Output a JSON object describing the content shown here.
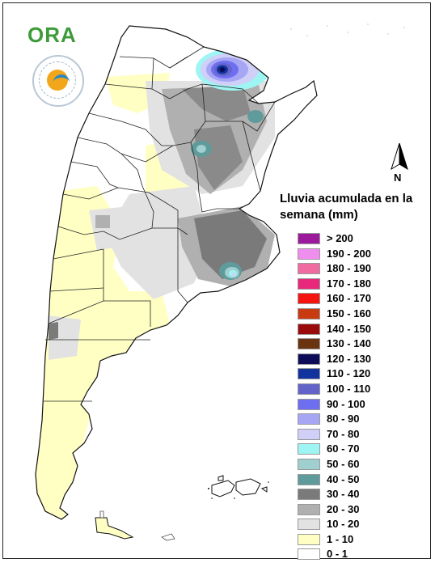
{
  "logo": {
    "text": "ORA",
    "seal_text": "SERVICIO METEOROLOGICO NACIONAL · ARGENTINA"
  },
  "north_arrow": {
    "label": "N"
  },
  "legend": {
    "title": "Lluvia acumulada en la semana (mm)",
    "items": [
      {
        "label": "> 200",
        "color": "#9b1a9b"
      },
      {
        "label": "190 - 200",
        "color": "#f08ef0"
      },
      {
        "label": "180 - 190",
        "color": "#f06ba0"
      },
      {
        "label": "170 - 180",
        "color": "#e8287a"
      },
      {
        "label": "160 - 170",
        "color": "#f5130f"
      },
      {
        "label": "150 - 160",
        "color": "#c83a10"
      },
      {
        "label": "140 - 150",
        "color": "#9a0a0a"
      },
      {
        "label": "130 - 140",
        "color": "#6b3410"
      },
      {
        "label": "120 - 130",
        "color": "#0c0c58"
      },
      {
        "label": "110 - 120",
        "color": "#11339e"
      },
      {
        "label": "100 - 110",
        "color": "#6464c8"
      },
      {
        "label": "90 - 100",
        "color": "#6e6ef0"
      },
      {
        "label": "80 - 90",
        "color": "#a6a6f4"
      },
      {
        "label": "70 - 80",
        "color": "#cfcff7"
      },
      {
        "label": "60 - 70",
        "color": "#9ef5f3"
      },
      {
        "label": "50 - 60",
        "color": "#9fcfcf"
      },
      {
        "label": "40 - 50",
        "color": "#5f9b9b"
      },
      {
        "label": "30 - 40",
        "color": "#7a7a7a"
      },
      {
        "label": "20 - 30",
        "color": "#b0b0b0"
      },
      {
        "label": "10 - 20",
        "color": "#e2e2e2"
      },
      {
        "label": "1 - 10",
        "color": "#ffffc4"
      },
      {
        "label": "0 - 1",
        "color": "#ffffff"
      }
    ]
  }
}
